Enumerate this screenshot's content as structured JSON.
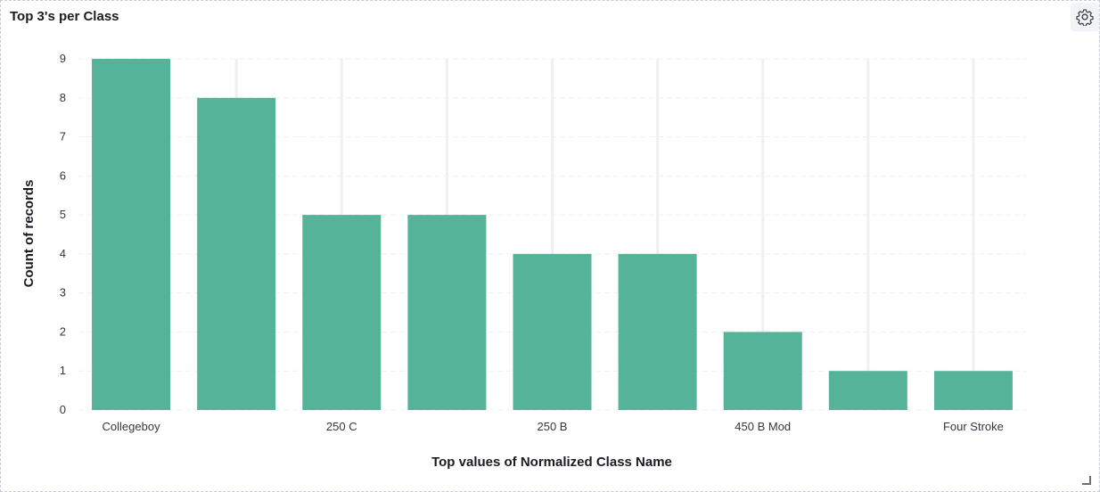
{
  "panel": {
    "title": "Top 3's per Class"
  },
  "icons": {
    "settings": "gear-icon",
    "resize": "resize-handle-icon"
  },
  "chart_data": {
    "type": "bar",
    "categories": [
      "Collegeboy",
      "",
      "250 C",
      "",
      "250 B",
      "",
      "450 B Mod",
      "",
      "Four Stroke"
    ],
    "values": [
      9,
      8,
      5,
      5,
      4,
      4,
      2,
      1,
      1
    ],
    "xlabel": "Top values of Normalized Class Name",
    "ylabel": "Count of records",
    "ylim": [
      0,
      9
    ],
    "yticks": [
      0,
      1,
      2,
      3,
      4,
      5,
      6,
      7,
      8,
      9
    ],
    "grid": true,
    "bar_color": "#54b399",
    "grid_color": "#eef0f3"
  }
}
